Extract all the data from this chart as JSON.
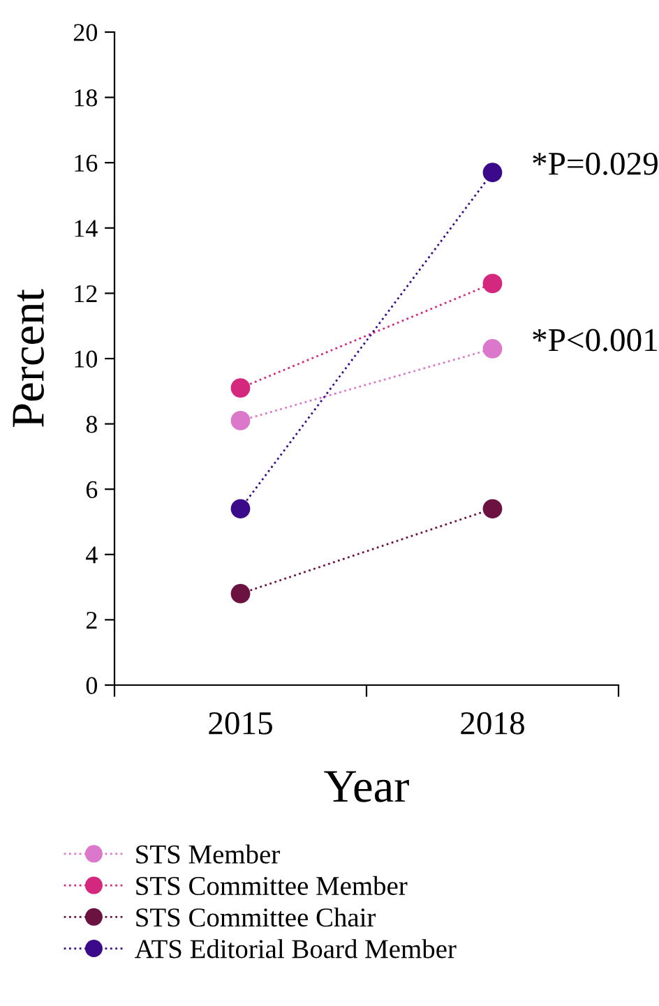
{
  "chart_data": {
    "type": "line",
    "xlabel": "Year",
    "ylabel": "Percent",
    "categories": [
      "2015",
      "2018"
    ],
    "series": [
      {
        "name": "STS Member",
        "color": "#dc78cc",
        "values": [
          8.1,
          10.3
        ]
      },
      {
        "name": "STS Committee Member",
        "color": "#d4287e",
        "values": [
          9.1,
          12.3
        ]
      },
      {
        "name": "STS Committee Chair",
        "color": "#6b1240",
        "values": [
          2.8,
          5.4
        ]
      },
      {
        "name": "ATS Editorial Board Member",
        "color": "#3a0a8a",
        "values": [
          5.4,
          15.7
        ]
      }
    ],
    "ylim": [
      0,
      20
    ],
    "yticks": [
      0,
      2,
      4,
      6,
      8,
      10,
      12,
      14,
      16,
      18,
      20
    ],
    "annotations": [
      {
        "text": "*P=0.029",
        "x": "2018",
        "y": 15.7
      },
      {
        "text": "*P<0.001",
        "x": "2018",
        "y": 10.3
      }
    ],
    "marker": "circle",
    "line_style": "dotted",
    "legend": "bottom",
    "grid": false
  }
}
